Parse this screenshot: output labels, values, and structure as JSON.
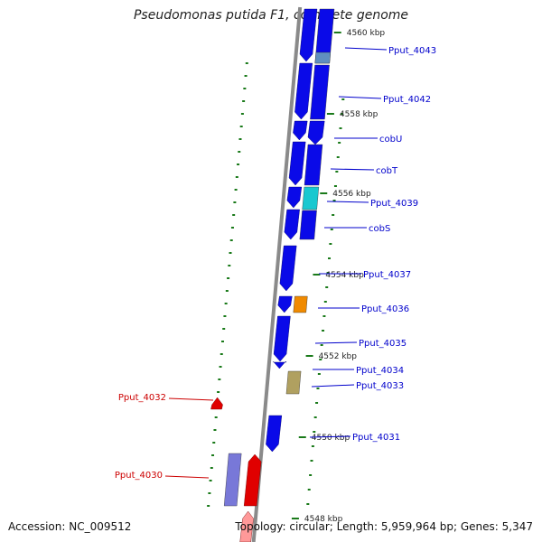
{
  "title": "Pseudomonas putida F1, complete genome",
  "footer": {
    "accession": "Accession: NC_009512",
    "topology": "Topology: circular; Length: 5,959,964 bp; Genes: 5,347"
  },
  "ticks": [
    "4560 kbp",
    "4558 kbp",
    "4556 kbp",
    "4554 kbp",
    "4552 kbp",
    "4550 kbp",
    "4548 kbp"
  ],
  "genes_right": [
    "Pput_4043",
    "Pput_4042",
    "cobU",
    "cobT",
    "Pput_4039",
    "cobS",
    "Pput_4037",
    "Pput_4036",
    "Pput_4035",
    "Pput_4034",
    "Pput_4033",
    "Pput_4031"
  ],
  "genes_left": [
    "Pput_4032",
    "Pput_4030"
  ],
  "colors": {
    "forward": "#e00000",
    "reverse": "#0a0ae8",
    "backbone": "#8a8a8a",
    "tick": "#1a7a1a",
    "label_right": "#0000cc",
    "label_left": "#cc0000",
    "light_blue": "#5f8fc0",
    "cyan": "#18c8d0",
    "orange": "#f08a00",
    "khaki": "#b0a060",
    "lavender": "#7878d8"
  }
}
